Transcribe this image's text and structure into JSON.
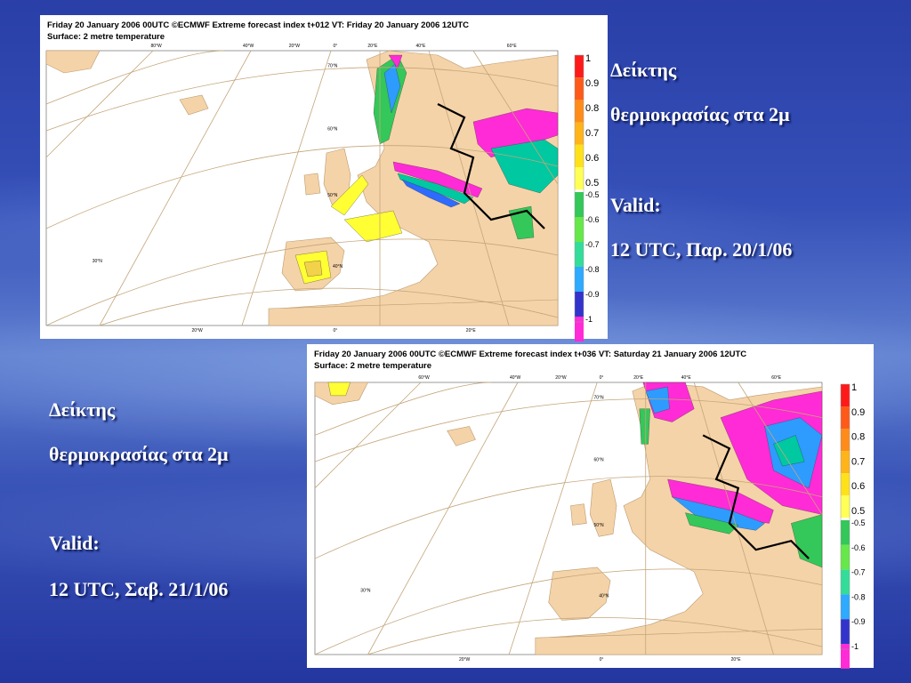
{
  "slide": {
    "right_texts": [
      "Δείκτης",
      "θερμοκρασίας στα 2μ",
      "Valid:",
      "12 UTC, Παρ. 20/1/06"
    ],
    "left_texts": [
      "Δείκτης",
      "θερμοκρασίας στα 2μ",
      "Valid:",
      "12 UTC, Σαβ. 21/1/06"
    ]
  },
  "panels": [
    {
      "title": "Friday 20 January 2006 00UTC ©ECMWF Extreme forecast index t+012 VT: Friday 20 January 2006 12UTC",
      "subtitle": "Surface: 2 metre temperature",
      "legend": [
        "1",
        "0.9",
        "0.8",
        "0.7",
        "0.6",
        "0.5",
        "-0.5",
        "-0.6",
        "-0.7",
        "-0.8",
        "-0.9",
        "-1"
      ],
      "lon_top": [
        "80°W",
        "40°W",
        "20°W",
        "0°",
        "20°E",
        "40°E",
        "60°E"
      ],
      "lon_bottom": [
        "20°W",
        "0°",
        "20°E"
      ],
      "lat": [
        "70°N",
        "60°N",
        "50°N",
        "40°N",
        "30°N"
      ]
    },
    {
      "title": "Friday 20 January 2006 00UTC ©ECMWF Extreme forecast index t+036 VT: Saturday 21 January 2006 12UTC",
      "subtitle": "Surface: 2 metre temperature",
      "legend": [
        "1",
        "0.9",
        "0.8",
        "0.7",
        "0.6",
        "0.5",
        "-0.5",
        "-0.6",
        "-0.7",
        "-0.8",
        "-0.9",
        "-1"
      ],
      "lon_top": [
        "60°W",
        "40°W",
        "20°W",
        "0°",
        "20°E",
        "40°E",
        "60°E"
      ],
      "lon_bottom": [
        "20°W",
        "0°",
        "20°E"
      ],
      "lat": [
        "70°N",
        "60°N",
        "50°N",
        "40°N",
        "30°N"
      ]
    }
  ]
}
